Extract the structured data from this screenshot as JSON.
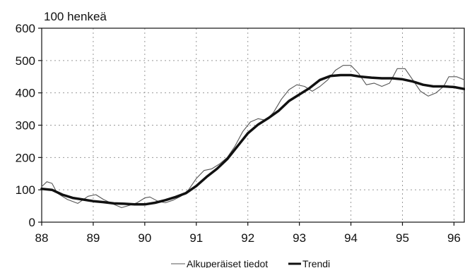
{
  "chart_data": {
    "type": "line",
    "unit_label": "100 henkeä",
    "ylim": [
      0,
      600
    ],
    "xlim": [
      88,
      96.2
    ],
    "y_ticks": [
      0,
      100,
      200,
      300,
      400,
      500,
      600
    ],
    "x_ticks": [
      88,
      89,
      90,
      91,
      92,
      93,
      94,
      95,
      96
    ],
    "y_tick_labels": [
      "0",
      "100",
      "200",
      "300",
      "400",
      "500",
      "600"
    ],
    "x_tick_labels": [
      "88",
      "89",
      "90",
      "91",
      "92",
      "93",
      "94",
      "95",
      "96"
    ],
    "grid": "dotted",
    "legend_position": "bottom-right",
    "series": [
      {
        "name": "Alkuperäiset tiedot",
        "color": "#555555",
        "style": "thin",
        "points": [
          [
            88.0,
            110
          ],
          [
            88.1,
            125
          ],
          [
            88.2,
            120
          ],
          [
            88.3,
            90
          ],
          [
            88.5,
            70
          ],
          [
            88.7,
            58
          ],
          [
            88.9,
            80
          ],
          [
            89.05,
            85
          ],
          [
            89.2,
            70
          ],
          [
            89.4,
            55
          ],
          [
            89.55,
            45
          ],
          [
            89.7,
            52
          ],
          [
            89.85,
            60
          ],
          [
            90.0,
            75
          ],
          [
            90.1,
            78
          ],
          [
            90.25,
            65
          ],
          [
            90.4,
            60
          ],
          [
            90.55,
            68
          ],
          [
            90.7,
            80
          ],
          [
            90.85,
            100
          ],
          [
            91.0,
            135
          ],
          [
            91.15,
            160
          ],
          [
            91.3,
            165
          ],
          [
            91.45,
            180
          ],
          [
            91.6,
            200
          ],
          [
            91.75,
            235
          ],
          [
            91.9,
            280
          ],
          [
            92.05,
            310
          ],
          [
            92.2,
            320
          ],
          [
            92.35,
            315
          ],
          [
            92.5,
            340
          ],
          [
            92.65,
            380
          ],
          [
            92.8,
            410
          ],
          [
            92.95,
            425
          ],
          [
            93.1,
            420
          ],
          [
            93.25,
            405
          ],
          [
            93.4,
            420
          ],
          [
            93.55,
            440
          ],
          [
            93.7,
            470
          ],
          [
            93.85,
            485
          ],
          [
            94.0,
            485
          ],
          [
            94.15,
            460
          ],
          [
            94.3,
            425
          ],
          [
            94.45,
            430
          ],
          [
            94.6,
            420
          ],
          [
            94.75,
            430
          ],
          [
            94.9,
            475
          ],
          [
            95.05,
            475
          ],
          [
            95.2,
            440
          ],
          [
            95.35,
            405
          ],
          [
            95.5,
            390
          ],
          [
            95.65,
            400
          ],
          [
            95.8,
            420
          ],
          [
            95.9,
            450
          ],
          [
            96.05,
            450
          ],
          [
            96.2,
            440
          ]
        ]
      },
      {
        "name": "Trendi",
        "color": "#111111",
        "style": "thick",
        "points": [
          [
            88.0,
            103
          ],
          [
            88.2,
            100
          ],
          [
            88.4,
            85
          ],
          [
            88.6,
            75
          ],
          [
            88.8,
            70
          ],
          [
            89.0,
            65
          ],
          [
            89.2,
            62
          ],
          [
            89.4,
            58
          ],
          [
            89.6,
            57
          ],
          [
            89.8,
            55
          ],
          [
            90.0,
            55
          ],
          [
            90.2,
            60
          ],
          [
            90.4,
            68
          ],
          [
            90.6,
            78
          ],
          [
            90.8,
            90
          ],
          [
            91.0,
            112
          ],
          [
            91.2,
            140
          ],
          [
            91.4,
            165
          ],
          [
            91.6,
            195
          ],
          [
            91.8,
            235
          ],
          [
            92.0,
            275
          ],
          [
            92.2,
            302
          ],
          [
            92.4,
            322
          ],
          [
            92.6,
            345
          ],
          [
            92.8,
            375
          ],
          [
            93.0,
            395
          ],
          [
            93.2,
            415
          ],
          [
            93.4,
            440
          ],
          [
            93.6,
            452
          ],
          [
            93.8,
            455
          ],
          [
            94.0,
            455
          ],
          [
            94.2,
            450
          ],
          [
            94.4,
            447
          ],
          [
            94.6,
            445
          ],
          [
            94.8,
            445
          ],
          [
            95.0,
            442
          ],
          [
            95.2,
            435
          ],
          [
            95.4,
            425
          ],
          [
            95.6,
            420
          ],
          [
            95.8,
            420
          ],
          [
            96.0,
            418
          ],
          [
            96.2,
            412
          ]
        ]
      }
    ]
  }
}
